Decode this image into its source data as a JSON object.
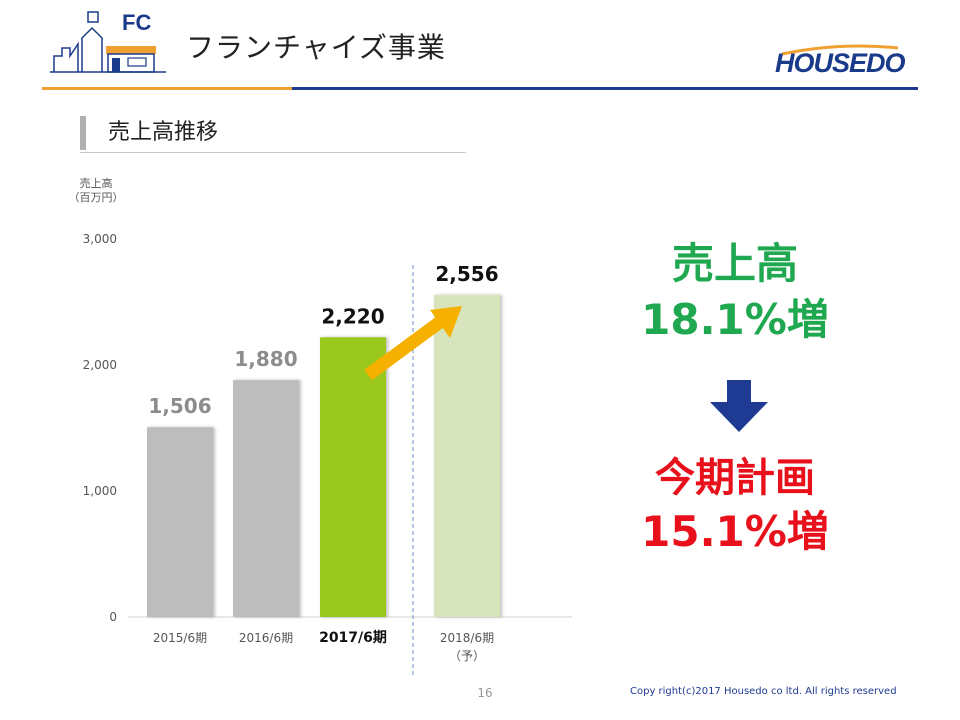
{
  "header": {
    "logo_text": "FC",
    "title": "フランチャイズ事業",
    "brand": "HOUSEDO"
  },
  "section": {
    "title": "売上高推移"
  },
  "highlights": {
    "sales_label": "売上高",
    "sales_growth": "18.1%増",
    "plan_label": "今期計画",
    "plan_growth": "15.1%増",
    "green": "#1fa84f",
    "red": "#e8101a"
  },
  "footer": {
    "page_number": "16",
    "copyright": "Copy right(c)2017 Housedo co ltd. All rights reserved"
  },
  "chart_data": {
    "type": "bar",
    "ylabel_lines": [
      "売上高",
      "（百万円）"
    ],
    "ylim": [
      0,
      3000
    ],
    "yticks": [
      "0",
      "1,000",
      "2,000",
      "3,000"
    ],
    "ytick_values": [
      0,
      1000,
      2000,
      3000
    ],
    "categories": [
      {
        "label": "2015/6期",
        "sub": ""
      },
      {
        "label": "2016/6期",
        "sub": ""
      },
      {
        "label": "2017/6期",
        "sub": ""
      },
      {
        "label": "2018/6期",
        "sub": "（予）"
      }
    ],
    "values": [
      1506,
      1880,
      2220,
      2556
    ],
    "value_labels": [
      "1,506",
      "1,880",
      "2,220",
      "2,556"
    ],
    "colors": [
      "#bdbdbd",
      "#bdbdbd",
      "#9bc81a",
      "#d8e4bc"
    ],
    "label_colors": [
      "#8c8c8c",
      "#8c8c8c",
      "#111111",
      "#111111"
    ],
    "highlight_index": 2,
    "forecast_index": 3,
    "grid": false
  }
}
